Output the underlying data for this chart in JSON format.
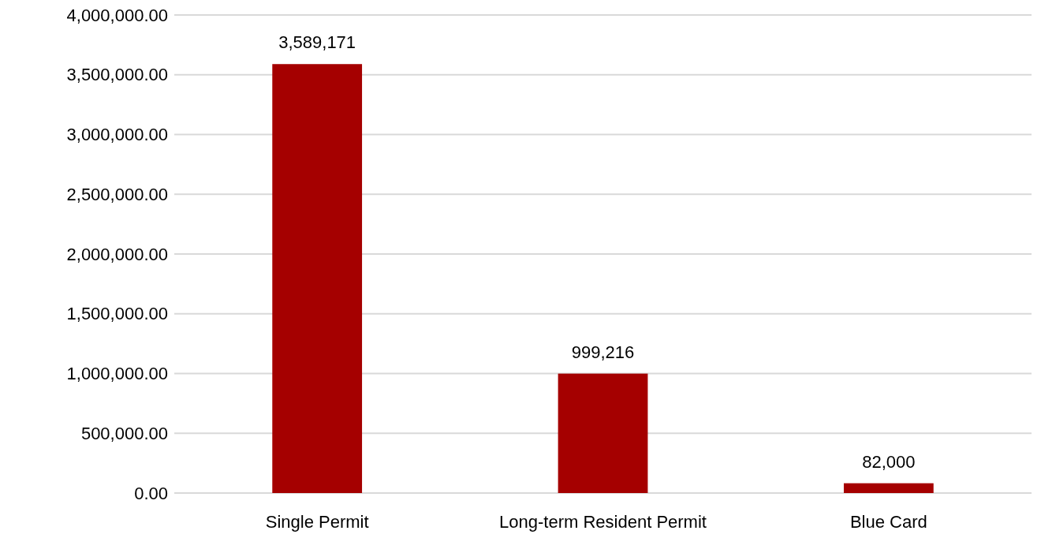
{
  "chart_data": {
    "type": "bar",
    "categories": [
      "Single Permit",
      "Long-term Resident Permit",
      "Blue Card"
    ],
    "values": [
      3589171,
      999216,
      82000
    ],
    "color": "#a50000",
    "value_labels": [
      "3,589,171",
      "999,216",
      "82,000"
    ],
    "grid": "y",
    "ylim": [
      0,
      4000000
    ],
    "yticks": [
      {
        "value": 0,
        "label": "0.00"
      },
      {
        "value": 500000,
        "label": "500,000.00"
      },
      {
        "value": 1000000,
        "label": "1,000,000.00"
      },
      {
        "value": 1500000,
        "label": "1,500,000.00"
      },
      {
        "value": 2000000,
        "label": "2,000,000.00"
      },
      {
        "value": 2500000,
        "label": "2,500,000.00"
      },
      {
        "value": 3000000,
        "label": "3,000,000.00"
      },
      {
        "value": 3500000,
        "label": "3,500,000.00"
      },
      {
        "value": 4000000,
        "label": "4,000,000.00"
      }
    ]
  }
}
